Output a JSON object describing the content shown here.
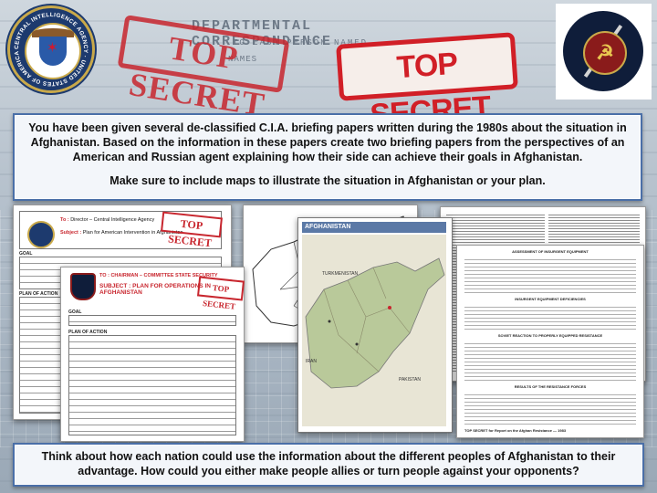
{
  "header": {
    "dept_text": "DEPARTMENTAL CORRESPONDENCE",
    "dept_sub": "TO LAST PERSON NAMED",
    "dept_sub2": "NAMES",
    "stamp_left": "TOP SECRET",
    "stamp_right": "TOP SECRET",
    "cia_seal_text": "CENTRAL INTELLIGENCE AGENCY · UNITED STATES OF AMERICA"
  },
  "instructions": {
    "line1": "You have been given several de-classified C.I.A. briefing papers written during the 1980s about the situation in Afghanistan.  Based on the information in these papers create two briefing papers from the perspectives of an American and Russian agent explaining how their side can achieve their goals in Afghanistan.",
    "line2": "Make sure to include maps to illustrate the situation in Afghanistan or your plan."
  },
  "doc_american": {
    "to_label": "To :",
    "to_value": "Director – Central Intelligence Agency",
    "subject_label": "Subject :",
    "subject_value": "Plan for American Intervention in Afghanistan.",
    "stamp": "TOP SECRET",
    "goal_label": "GOAL",
    "plan_label": "PLAN OF ACTION"
  },
  "doc_russian": {
    "to_label": "TO :",
    "to_value": "CHAIRMAN – COMMITTEE STATE SECURITY",
    "subject_label": "SUBJECT :",
    "subject_value": "PLAN FOR OPERATIONS IN AFGHANISTAN",
    "stamp": "TOP SECRET",
    "goal_label": "GOAL",
    "plan_label": "PLAN OF ACTION"
  },
  "map_doc": {
    "title": "AFGHANISTAN",
    "labels": [
      "TURKMENISTAN",
      "IRAN",
      "PAKISTAN"
    ]
  },
  "briefing_doc": {
    "heading": "ASSESSMENT OF INSURGENT EQUIPMENT",
    "subheading1": "INSURGENT EQUIPMENT DEFICIENCIES",
    "subheading2": "SOVIET REACTION TO PROPERLY EQUIPPED RESISTANCE",
    "subheading3": "RESULTS OF THE RESISTANCE FORCES",
    "footer": "TOP SECRET for Report on the Afghan Resistance — 1983"
  },
  "question": {
    "text": "Think about how each nation could use the information about the different peoples of Afghanistan to their advantage.    How could you either make people allies or turn people against your opponents?"
  },
  "colors": {
    "stamp_red": "#c8262e",
    "panel_border": "#4a6fa8",
    "cia_blue": "#1d3a6e",
    "gold": "#c9a94a"
  }
}
